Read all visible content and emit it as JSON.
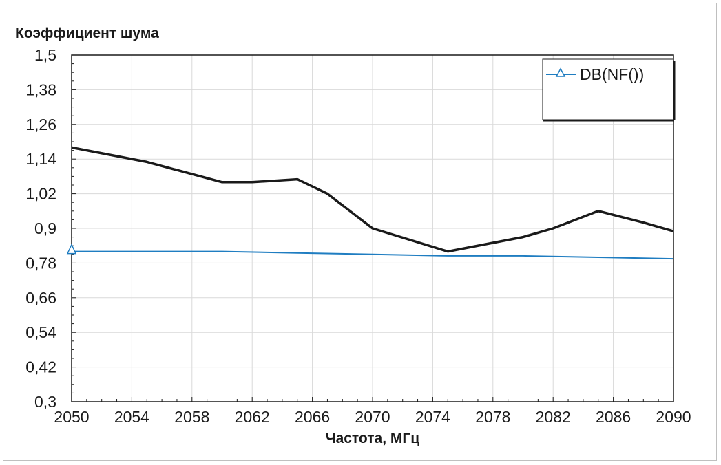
{
  "chart_data": {
    "type": "line",
    "title": "Коэффициент шума",
    "xlabel": "Частота, МГц",
    "ylabel": "",
    "xlim": [
      2050,
      2090
    ],
    "ylim": [
      0.3,
      1.5
    ],
    "x_ticks": [
      "2050",
      "2054",
      "2058",
      "2062",
      "2066",
      "2070",
      "2074",
      "2078",
      "2082",
      "2086",
      "2090"
    ],
    "y_ticks": [
      "0,3",
      "0,42",
      "0,54",
      "0,66",
      "0,78",
      "0,9",
      "1,02",
      "1,14",
      "1,26",
      "1,38",
      "1,5"
    ],
    "grid": true,
    "legend": {
      "position": "top-right",
      "entries": [
        "DB(NF())"
      ]
    },
    "series": [
      {
        "name": "",
        "color": "#1a1a1a",
        "points": [
          [
            2050,
            1.18
          ],
          [
            2055,
            1.13
          ],
          [
            2060,
            1.06
          ],
          [
            2062,
            1.06
          ],
          [
            2065,
            1.07
          ],
          [
            2067,
            1.02
          ],
          [
            2070,
            0.9
          ],
          [
            2075,
            0.82
          ],
          [
            2078,
            0.85
          ],
          [
            2080,
            0.87
          ],
          [
            2082,
            0.9
          ],
          [
            2085,
            0.96
          ],
          [
            2088,
            0.92
          ],
          [
            2090,
            0.89
          ]
        ]
      },
      {
        "name": "DB(NF())",
        "color": "#1f7dc1",
        "marker": "triangle",
        "points": [
          [
            2050,
            0.82
          ],
          [
            2055,
            0.82
          ],
          [
            2060,
            0.82
          ],
          [
            2065,
            0.815
          ],
          [
            2070,
            0.81
          ],
          [
            2075,
            0.805
          ],
          [
            2080,
            0.805
          ],
          [
            2085,
            0.8
          ],
          [
            2090,
            0.795
          ]
        ]
      }
    ]
  }
}
